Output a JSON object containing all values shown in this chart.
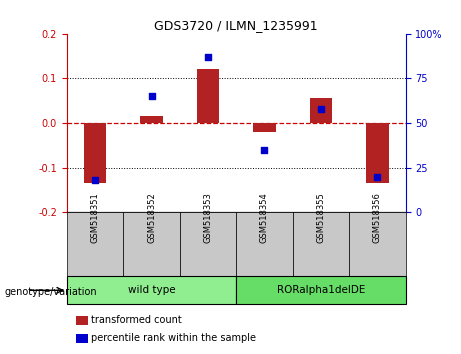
{
  "title": "GDS3720 / ILMN_1235991",
  "samples": [
    "GSM518351",
    "GSM518352",
    "GSM518353",
    "GSM518354",
    "GSM518355",
    "GSM518356"
  ],
  "red_values": [
    -0.135,
    0.015,
    0.12,
    -0.02,
    0.055,
    -0.135
  ],
  "blue_values_pct": [
    18,
    65,
    87,
    35,
    58,
    20
  ],
  "ylim_left": [
    -0.2,
    0.2
  ],
  "ylim_right": [
    0,
    100
  ],
  "yticks_left": [
    -0.2,
    -0.1,
    0.0,
    0.1,
    0.2
  ],
  "yticks_right": [
    0,
    25,
    50,
    75,
    100
  ],
  "groups": [
    {
      "label": "wild type",
      "indices": [
        0,
        1,
        2
      ],
      "color": "#90EE90"
    },
    {
      "label": "RORalpha1delDE",
      "indices": [
        3,
        4,
        5
      ],
      "color": "#66DD66"
    }
  ],
  "group_label": "genotype/variation",
  "legend_red": "transformed count",
  "legend_blue": "percentile rank within the sample",
  "bar_color": "#B22222",
  "dot_color": "#0000CD",
  "bar_width": 0.4,
  "background_color": "#ffffff",
  "zero_line_color": "#CC0000",
  "grid_color": "#000000",
  "sample_box_color": "#C8C8C8",
  "title_fontsize": 9
}
